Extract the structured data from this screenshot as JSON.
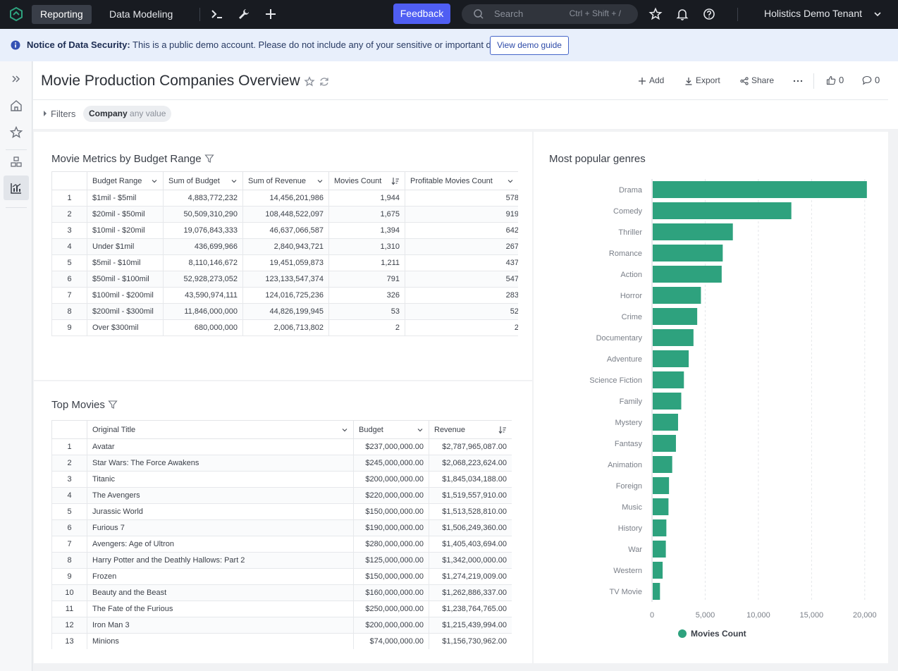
{
  "nav": {
    "tabs": [
      {
        "label": "Reporting"
      },
      {
        "label": "Data Modeling"
      }
    ],
    "feedback_label": "Feedback",
    "search_placeholder": "Search",
    "search_hint": "Ctrl + Shift + /",
    "tenant": "Holistics Demo Tenant"
  },
  "notice": {
    "label": "Notice of Data Security:",
    "text": "This is a public demo account. Please do not include any of your sensitive or important data.",
    "button": "View demo guide"
  },
  "page": {
    "title": "Movie Production Companies Overview",
    "actions": {
      "add": "Add",
      "export": "Export",
      "share": "Share",
      "likes": "0",
      "comments": "0"
    },
    "filters_label": "Filters",
    "filter_chip": {
      "field": "Company",
      "value": "any value"
    }
  },
  "budget_table": {
    "title": "Movie Metrics by Budget Range",
    "columns": [
      "Budget Range",
      "Sum of Budget",
      "Sum of Revenue",
      "Movies Count",
      "Profitable Movies Count"
    ],
    "rows": [
      [
        "1",
        "$1mil - $5mil",
        "4,883,772,232",
        "14,456,201,986",
        "1,944",
        "578"
      ],
      [
        "2",
        "$20mil - $50mil",
        "50,509,310,290",
        "108,448,522,097",
        "1,675",
        "919"
      ],
      [
        "3",
        "$10mil - $20mil",
        "19,076,843,333",
        "46,637,066,587",
        "1,394",
        "642"
      ],
      [
        "4",
        "Under $1mil",
        "436,699,966",
        "2,840,943,721",
        "1,310",
        "267"
      ],
      [
        "5",
        "$5mil - $10mil",
        "8,110,146,672",
        "19,451,059,873",
        "1,211",
        "437"
      ],
      [
        "6",
        "$50mil - $100mil",
        "52,928,273,052",
        "123,133,547,374",
        "791",
        "547"
      ],
      [
        "7",
        "$100mil - $200mil",
        "43,590,974,111",
        "124,016,725,236",
        "326",
        "283"
      ],
      [
        "8",
        "$200mil - $300mil",
        "11,846,000,000",
        "44,826,199,945",
        "53",
        "52"
      ],
      [
        "9",
        "Over $300mil",
        "680,000,000",
        "2,006,713,802",
        "2",
        "2"
      ]
    ]
  },
  "movies_table": {
    "title": "Top Movies",
    "columns": [
      "Original Title",
      "Budget",
      "Revenue"
    ],
    "rows": [
      [
        "1",
        "Avatar",
        "$237,000,000.00",
        "$2,787,965,087.00"
      ],
      [
        "2",
        "Star Wars: The Force Awakens",
        "$245,000,000.00",
        "$2,068,223,624.00"
      ],
      [
        "3",
        "Titanic",
        "$200,000,000.00",
        "$1,845,034,188.00"
      ],
      [
        "4",
        "The Avengers",
        "$220,000,000.00",
        "$1,519,557,910.00"
      ],
      [
        "5",
        "Jurassic World",
        "$150,000,000.00",
        "$1,513,528,810.00"
      ],
      [
        "6",
        "Furious 7",
        "$190,000,000.00",
        "$1,506,249,360.00"
      ],
      [
        "7",
        "Avengers: Age of Ultron",
        "$280,000,000.00",
        "$1,405,403,694.00"
      ],
      [
        "8",
        "Harry Potter and the Deathly Hallows: Part 2",
        "$125,000,000.00",
        "$1,342,000,000.00"
      ],
      [
        "9",
        "Frozen",
        "$150,000,000.00",
        "$1,274,219,009.00"
      ],
      [
        "10",
        "Beauty and the Beast",
        "$160,000,000.00",
        "$1,262,886,337.00"
      ],
      [
        "11",
        "The Fate of the Furious",
        "$250,000,000.00",
        "$1,238,764,765.00"
      ],
      [
        "12",
        "Iron Man 3",
        "$200,000,000.00",
        "$1,215,439,994.00"
      ],
      [
        "13",
        "Minions",
        "$74,000,000.00",
        "$1,156,730,962.00"
      ]
    ]
  },
  "chart_data": {
    "type": "bar",
    "orientation": "horizontal",
    "title": "Most popular genres",
    "categories": [
      "Drama",
      "Comedy",
      "Thriller",
      "Romance",
      "Action",
      "Horror",
      "Crime",
      "Documentary",
      "Adventure",
      "Science Fiction",
      "Family",
      "Mystery",
      "Fantasy",
      "Animation",
      "Foreign",
      "Music",
      "History",
      "War",
      "Western",
      "TV Movie"
    ],
    "series": [
      {
        "name": "Movies Count",
        "values": [
          20200,
          13100,
          7600,
          6650,
          6550,
          4600,
          4250,
          3900,
          3450,
          3000,
          2750,
          2450,
          2250,
          1900,
          1600,
          1550,
          1350,
          1300,
          1000,
          750
        ]
      }
    ],
    "xlim": [
      0,
      22000
    ],
    "xticks": [
      "0",
      "5,000",
      "10,000",
      "15,000",
      "20,000"
    ],
    "xtick_values": [
      0,
      5000,
      10000,
      15000,
      20000
    ],
    "grid": true,
    "legend": "bottom",
    "color": "#2ea27e"
  }
}
